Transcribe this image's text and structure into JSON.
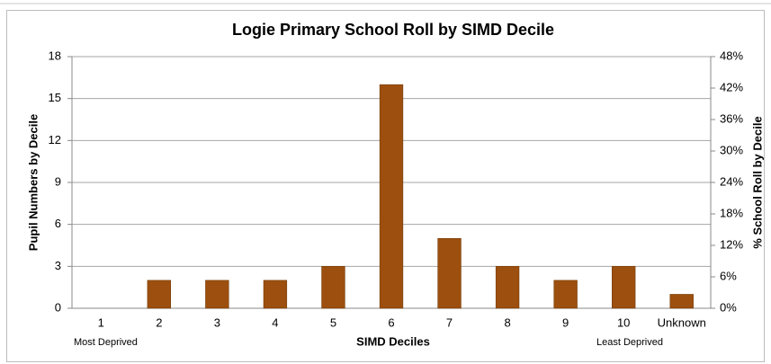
{
  "chart_data": {
    "type": "bar",
    "title": "Logie Primary School Roll by SIMD Decile",
    "x_label": "SIMD Deciles",
    "y_label": "Pupil Numbers by Decile",
    "y2_label": "% School Roll by Decile",
    "annotations": [
      "Most Deprived",
      "Least Deprived"
    ],
    "categories": [
      "1",
      "2",
      "3",
      "4",
      "5",
      "6",
      "7",
      "8",
      "9",
      "10",
      "Unknown"
    ],
    "values": [
      0,
      2,
      2,
      2,
      3,
      16,
      5,
      3,
      2,
      3,
      1
    ],
    "color": "#9c4f0e",
    "ylim": [
      0,
      18
    ],
    "yticks": [
      0,
      3,
      6,
      9,
      12,
      15,
      18
    ],
    "y2lim": [
      0,
      48
    ],
    "y2ticks": [
      {
        "value": 0,
        "label": "0%"
      },
      {
        "value": 6,
        "label": "6%"
      },
      {
        "value": 12,
        "label": "12%"
      },
      {
        "value": 18,
        "label": "18%"
      },
      {
        "value": 24,
        "label": "24%"
      },
      {
        "value": 30,
        "label": "30%"
      },
      {
        "value": 36,
        "label": "36%"
      },
      {
        "value": 42,
        "label": "42%"
      },
      {
        "value": 48,
        "label": "48%"
      }
    ],
    "grid": true
  }
}
